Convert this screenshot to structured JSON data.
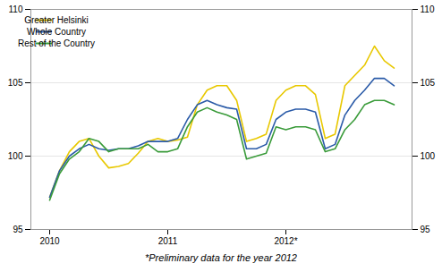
{
  "chart_data": {
    "type": "line",
    "footnote": "*Preliminary data for the year 2012",
    "categories": [
      "2010",
      null,
      null,
      null,
      null,
      null,
      null,
      null,
      null,
      null,
      null,
      null,
      "2011",
      null,
      null,
      null,
      null,
      null,
      null,
      null,
      null,
      null,
      null,
      null,
      "2012*",
      null,
      null,
      null,
      null,
      null,
      null,
      null,
      null,
      null,
      null,
      null
    ],
    "series": [
      {
        "name": "Greater Helsinki",
        "color": "#E8C800",
        "values": [
          97.2,
          99.0,
          100.3,
          101.0,
          101.2,
          100.0,
          99.2,
          99.3,
          99.5,
          100.2,
          101.0,
          101.2,
          101.0,
          101.1,
          101.3,
          103.5,
          104.5,
          104.8,
          104.8,
          103.8,
          101.0,
          101.2,
          101.5,
          103.8,
          104.5,
          104.8,
          104.8,
          104.2,
          101.2,
          101.5,
          104.8,
          105.5,
          106.2,
          107.5,
          106.5,
          106.0
        ]
      },
      {
        "name": "Whole Country",
        "color": "#2B5BA8",
        "values": [
          97.2,
          99.0,
          100.0,
          100.5,
          100.8,
          100.5,
          100.4,
          100.5,
          100.5,
          100.7,
          101.0,
          101.0,
          101.0,
          101.2,
          102.5,
          103.5,
          103.8,
          103.5,
          103.3,
          103.2,
          100.5,
          100.5,
          100.8,
          102.5,
          103.0,
          103.2,
          103.2,
          103.0,
          100.5,
          100.8,
          102.8,
          103.8,
          104.5,
          105.3,
          105.3,
          104.8
        ]
      },
      {
        "name": "Rest of the Country",
        "color": "#3A9B3A",
        "values": [
          97.0,
          98.8,
          99.8,
          100.3,
          101.2,
          101.0,
          100.3,
          100.5,
          100.5,
          100.5,
          100.8,
          100.3,
          100.3,
          100.5,
          102.0,
          103.0,
          103.3,
          103.0,
          102.8,
          102.5,
          99.8,
          100.0,
          100.2,
          102.0,
          101.8,
          102.0,
          102.0,
          101.8,
          100.3,
          100.5,
          101.8,
          102.5,
          103.5,
          103.8,
          103.8,
          103.5
        ]
      }
    ],
    "ylim": [
      95,
      110
    ],
    "yticks": [
      95,
      100,
      105,
      110
    ],
    "grid": true,
    "legend": "upper left"
  }
}
